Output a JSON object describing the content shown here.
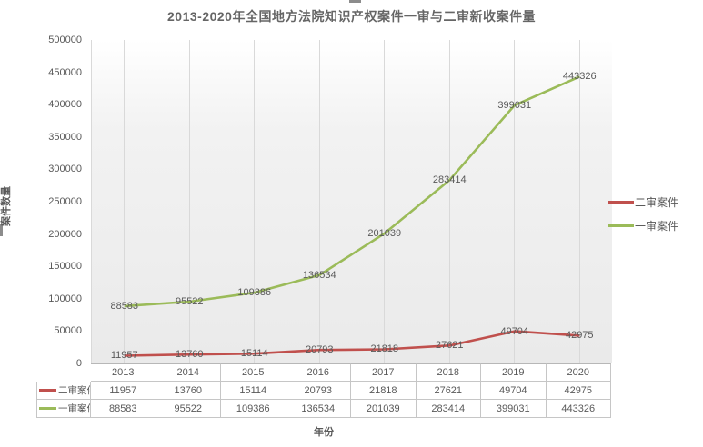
{
  "title": "2013-2020年全国地方法院知识产权案件一审与二审新收案件量",
  "y_axis_title": "案件数量",
  "x_axis_title": "年份",
  "chart_data": {
    "type": "line",
    "title": "2013-2020年全国地方法院知识产权案件一审与二审新收案件量",
    "xlabel": "年份",
    "ylabel": "案件数量",
    "categories": [
      "2013",
      "2014",
      "2015",
      "2016",
      "2017",
      "2018",
      "2019",
      "2020"
    ],
    "series": [
      {
        "name": "二审案件",
        "color": "#C0504D",
        "values": [
          11957,
          13760,
          15114,
          20793,
          21818,
          27621,
          49704,
          42975
        ]
      },
      {
        "name": "一审案件",
        "color": "#9BBB59",
        "values": [
          88583,
          95522,
          109386,
          136534,
          201039,
          283414,
          399031,
          443326
        ]
      }
    ],
    "ylim": [
      0,
      500000
    ],
    "y_ticks": [
      0,
      50000,
      100000,
      150000,
      200000,
      250000,
      300000,
      350000,
      400000,
      450000,
      500000
    ],
    "grid": "vertical",
    "legend_position": "right",
    "data_labels_position": "center",
    "data_table": true
  }
}
